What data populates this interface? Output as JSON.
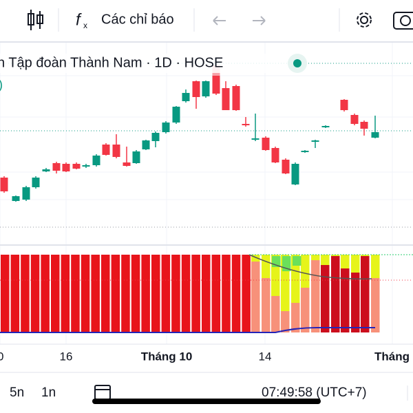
{
  "toolbar": {
    "indicators_label": "Các chỉ báo"
  },
  "legend": {
    "title": "n Tập đoàn Thành Nam · 1D · HOSE",
    "fragment": ")"
  },
  "time_axis": {
    "labels": [
      "0",
      "16",
      "Tháng 10",
      "14",
      "Tháng"
    ]
  },
  "bottom_bar": {
    "ranges": [
      "5n",
      "1n"
    ],
    "clock": "07:49:58 (UTC+7)"
  }
}
